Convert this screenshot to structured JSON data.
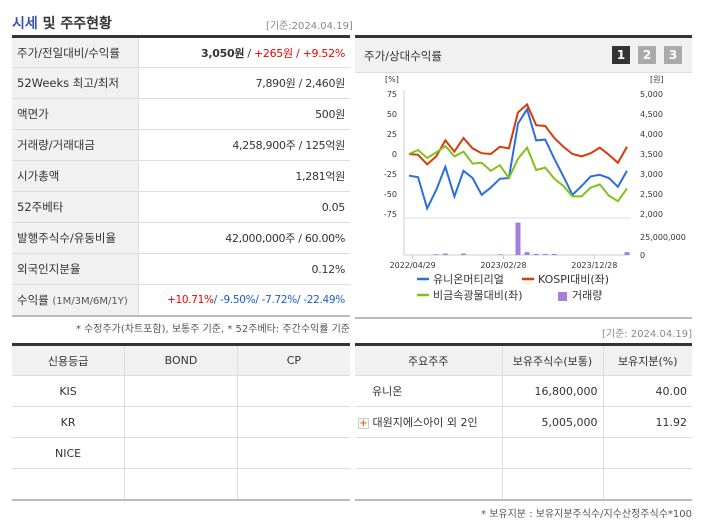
{
  "market": {
    "title_highlight": "시세",
    "title_rest": " 및 주주현황",
    "basis": "[기준:2024.04.19]",
    "rows": [
      {
        "label": "주가/전일대비/수익률",
        "price": "3,050원",
        "sep": " / ",
        "change": "+265원",
        "sep2": " / ",
        "rate": "+9.52%"
      },
      {
        "label": "52Weeks 최고/최저",
        "value": "7,890원 / 2,460원"
      },
      {
        "label": "액면가",
        "value": "500원"
      },
      {
        "label": "거래량/거래대금",
        "value": "4,258,900주 / 125억원"
      },
      {
        "label": "시가총액",
        "value": "1,281억원"
      },
      {
        "label": "52주베타",
        "value": "0.05"
      },
      {
        "label": "발행주식수/유동비율",
        "value": "42,000,000주 / 60.00%"
      },
      {
        "label": "외국인지분율",
        "value": "0.12%"
      },
      {
        "label": "수익률",
        "label_sub": "(1M/3M/6M/1Y)",
        "r1": "+10.71%",
        "r2": "/ -9.50%",
        "r3": "/ -7.72%",
        "r4": "/ -22.49%"
      }
    ],
    "note": "* 수정주가(차트포함), 보통주 기준, * 52주베타: 주간수익률 기준"
  },
  "chart_panel": {
    "title": "주가/상대수익률",
    "pages": [
      "1",
      "2",
      "3"
    ],
    "active_page": "1",
    "basis": "[기준: 2024.04.19]"
  },
  "chart_data": {
    "type": "line",
    "left_unit": "[%]",
    "right_unit": "[원]",
    "left_ticks": [
      "75",
      "50",
      "25",
      "0",
      "-25",
      "-50",
      "-75"
    ],
    "right_ticks": [
      "5,000",
      "4,500",
      "4,000",
      "3,500",
      "3,000",
      "2,500",
      "2,000"
    ],
    "ylim_left": [
      -75,
      75
    ],
    "ylim_right": [
      2000,
      5000
    ],
    "volume_ticks": [
      "25,000,000",
      "0"
    ],
    "x_ticks": [
      "2022/04/29",
      "2023/02/28",
      "2023/12/28"
    ],
    "series": [
      {
        "name": "유니온머티리얼",
        "color": "#2a6fdb",
        "values": [
          -27,
          -29,
          -68,
          -45,
          -16,
          -53,
          -21,
          -30,
          -51,
          -42,
          -31,
          -30,
          38,
          56,
          17,
          18,
          -6,
          -28,
          -51,
          -40,
          -28,
          -26,
          -30,
          -41,
          -21
        ]
      },
      {
        "name": "KOSPI대비(좌)",
        "color": "#d93a0b",
        "values": [
          0,
          -1,
          -13,
          -3,
          17,
          3,
          20,
          7,
          1,
          0,
          9,
          7,
          52,
          62,
          36,
          35,
          20,
          9,
          0,
          -3,
          1,
          8,
          -1,
          -11,
          9
        ]
      },
      {
        "name": "비금속광물대비(좌)",
        "color": "#82c01a",
        "values": [
          0,
          5,
          -5,
          2,
          10,
          -3,
          3,
          -12,
          -11,
          -21,
          -14,
          -30,
          -6,
          8,
          -20,
          -17,
          -31,
          -40,
          -53,
          -53,
          -42,
          -38,
          -52,
          -59,
          -43
        ]
      }
    ],
    "volume": {
      "name": "거래량",
      "color": "#a57fdc",
      "values": [
        0,
        0,
        0,
        1000000,
        2000000,
        0,
        2000000,
        0,
        0,
        0,
        1000000,
        0,
        45000000,
        4000000,
        1500000,
        1500000,
        1500000,
        0,
        0,
        0,
        0,
        0,
        0,
        0,
        4000000
      ]
    },
    "legend": "bottom"
  },
  "credit": {
    "headers": [
      "신용등급",
      "BOND",
      "CP"
    ],
    "rows": [
      [
        "KIS",
        "",
        ""
      ],
      [
        "KR",
        "",
        ""
      ],
      [
        "NICE",
        "",
        ""
      ],
      [
        "",
        "",
        ""
      ]
    ]
  },
  "holders": {
    "headers": [
      "주요주주",
      "보유주식수(보통)",
      "보유지분(%)"
    ],
    "rows": [
      [
        "유니온",
        "16,800,000",
        "40.00"
      ],
      [
        "대원지에스아이 외 2인",
        "5,005,000",
        "11.92"
      ],
      [
        "",
        "",
        ""
      ],
      [
        "",
        "",
        ""
      ]
    ],
    "note": "* 보유지분 : 보유지분주식수/지수산정주식수*100"
  }
}
